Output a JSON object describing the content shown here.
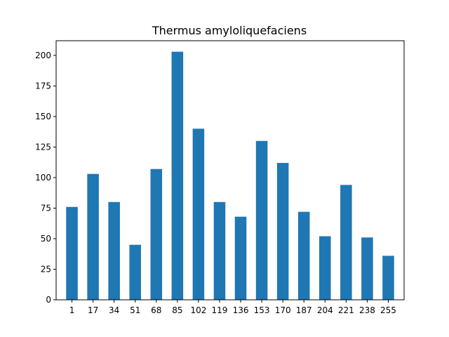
{
  "chart_data": {
    "type": "bar",
    "title": "Thermus amyloliquefaciens",
    "xlabel": "",
    "ylabel": "",
    "categories": [
      "1",
      "17",
      "34",
      "51",
      "68",
      "85",
      "102",
      "119",
      "136",
      "153",
      "170",
      "187",
      "204",
      "221",
      "238",
      "255"
    ],
    "values": [
      76,
      103,
      80,
      45,
      107,
      203,
      140,
      80,
      68,
      130,
      112,
      72,
      52,
      94,
      51,
      36
    ],
    "ylim": [
      0,
      212
    ],
    "yticks": [
      0,
      25,
      50,
      75,
      100,
      125,
      150,
      175,
      200
    ],
    "bar_color": "#1f77b4",
    "grid": false,
    "legend": "none"
  }
}
